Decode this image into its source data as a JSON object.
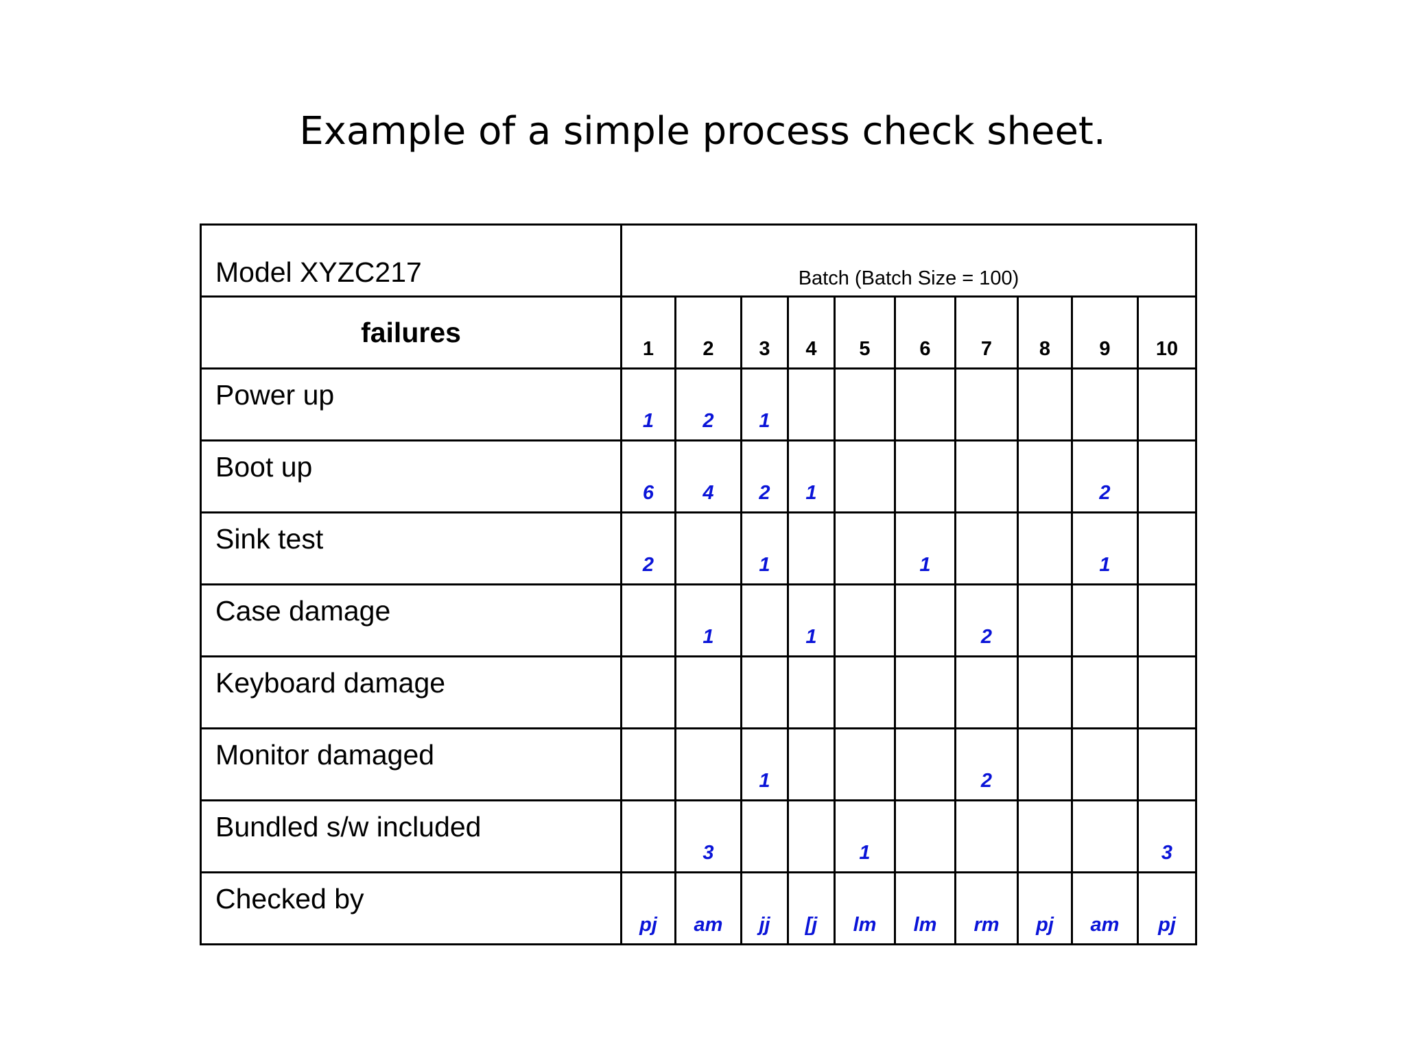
{
  "title": "Example of a simple process check sheet.",
  "sheet": {
    "model_label": "Model  XYZC217",
    "batch_header": "Batch (Batch Size = 100)",
    "failures_header": "failures",
    "batch_numbers": [
      "1",
      "2",
      "3",
      "4",
      "5",
      "6",
      "7",
      "8",
      "9",
      "10"
    ],
    "value_color": "#0a14d8",
    "rows": [
      {
        "label": "Power up",
        "values": [
          "1",
          "2",
          "1",
          "",
          "",
          "",
          "",
          "",
          "",
          ""
        ]
      },
      {
        "label": "Boot up",
        "values": [
          "6",
          "4",
          "2",
          "1",
          "",
          "",
          "",
          "",
          "2",
          ""
        ]
      },
      {
        "label": "Sink test",
        "values": [
          "2",
          "",
          "1",
          "",
          "",
          "1",
          "",
          "",
          "1",
          ""
        ]
      },
      {
        "label": "Case damage",
        "values": [
          "",
          "1",
          "",
          "1",
          "",
          "",
          "2",
          "",
          "",
          ""
        ]
      },
      {
        "label": "Keyboard damage",
        "values": [
          "",
          "",
          "",
          "",
          "",
          "",
          "",
          "",
          "",
          ""
        ]
      },
      {
        "label": "Monitor damaged",
        "values": [
          "",
          "",
          "1",
          "",
          "",
          "",
          "2",
          "",
          "",
          ""
        ]
      },
      {
        "label": "Bundled s/w included",
        "values": [
          "",
          "3",
          "",
          "",
          "1",
          "",
          "",
          "",
          "",
          "3"
        ]
      },
      {
        "label": "Checked by",
        "values": [
          "pj",
          "am",
          "jj",
          "[j",
          "lm",
          "lm",
          "rm",
          "pj",
          "am",
          "pj"
        ]
      }
    ]
  }
}
